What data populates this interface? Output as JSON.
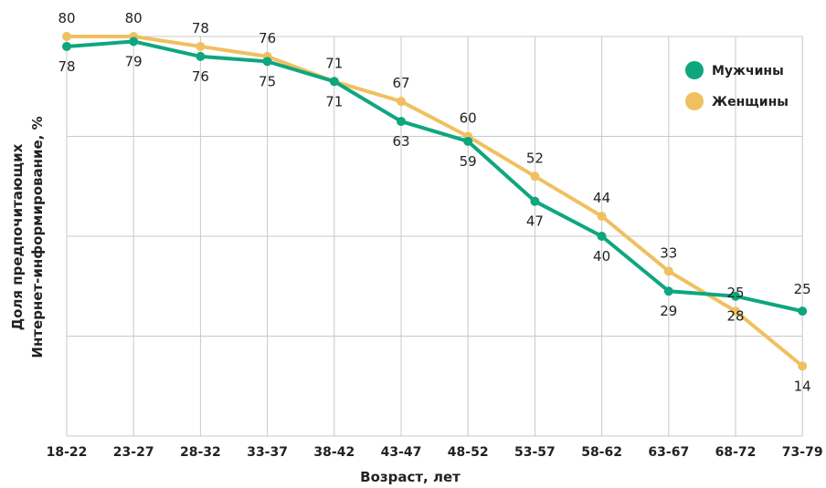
{
  "chart_data": {
    "type": "line",
    "categories": [
      "18-22",
      "23-27",
      "28-32",
      "33-37",
      "38-42",
      "43-47",
      "48-52",
      "53-57",
      "58-62",
      "63-67",
      "68-72",
      "73-79"
    ],
    "series": [
      {
        "name": "Мужчины",
        "color": "#0fa67f",
        "values": [
          78,
          79,
          76,
          75,
          71,
          63,
          59,
          47,
          40,
          29,
          28,
          25
        ]
      },
      {
        "name": "Женщины",
        "color": "#f0c060",
        "values": [
          80,
          80,
          78,
          76,
          71,
          67,
          60,
          52,
          44,
          33,
          25,
          14
        ]
      }
    ],
    "xlabel": "Возраст, лет",
    "ylabel_line1": "Доля предпочитающих",
    "ylabel_line2": "Интернет-информирование, %",
    "ylim": [
      0,
      80
    ],
    "grid": true,
    "legend_position": "top-right"
  }
}
